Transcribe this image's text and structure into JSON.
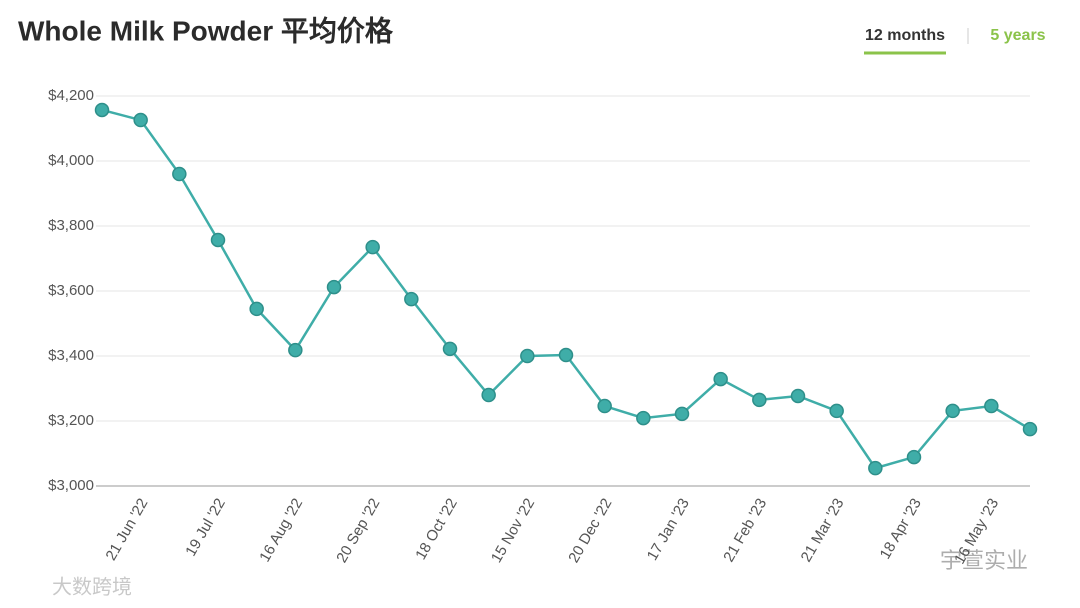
{
  "header": {
    "title": "Whole Milk Powder 平均价格",
    "tabs": [
      "12 months",
      "5 years"
    ]
  },
  "chart_data": {
    "type": "line",
    "categories": [
      null,
      "21 Jun '22",
      null,
      "19 Jul '22",
      null,
      "16 Aug '22",
      null,
      "20 Sep '22",
      null,
      "18 Oct '22",
      null,
      "15 Nov '22",
      null,
      "20 Dec '22",
      null,
      "17 Jan '23",
      null,
      "21 Feb '23",
      null,
      "21 Mar '23",
      null,
      "18 Apr '23",
      null,
      "16 May '23",
      null
    ],
    "series": [
      {
        "name": "Whole Milk Powder",
        "color": "#3fada8",
        "values": [
          4157,
          4126,
          3960,
          3757,
          3545,
          3418,
          3612,
          3735,
          3575,
          3422,
          3280,
          3400,
          3403,
          3246,
          3209,
          3222,
          3329,
          3265,
          3277,
          3231,
          3055,
          3089,
          3231,
          3246,
          3175
        ]
      }
    ],
    "ylim": [
      3000,
      4200
    ],
    "yticks": [
      {
        "value": 3000,
        "label": "$3,000"
      },
      {
        "value": 3200,
        "label": "$3,200"
      },
      {
        "value": 3400,
        "label": "$3,400"
      },
      {
        "value": 3600,
        "label": "$3,600"
      },
      {
        "value": 3800,
        "label": "$3,800"
      },
      {
        "value": 4000,
        "label": "$4,000"
      },
      {
        "value": 4200,
        "label": "$4,200"
      }
    ],
    "grid": true
  },
  "watermarks": [
    "大数跨境",
    "宇萱实业"
  ]
}
